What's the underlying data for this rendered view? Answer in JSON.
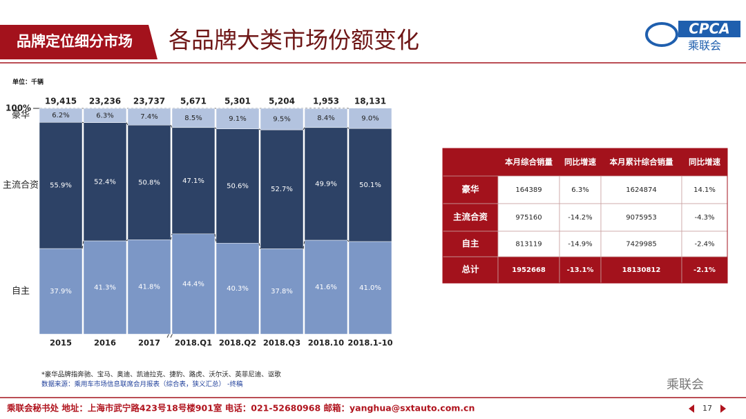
{
  "header": {
    "section": "品牌定位细分市场",
    "title": "各品牌大类市场份额变化",
    "logo": "CPCA",
    "logo_sub": "乘联会"
  },
  "chart_data": {
    "type": "stacked_bar",
    "unit": "单位：千辆",
    "categories": [
      "2015",
      "2016",
      "2017",
      "2018.Q1",
      "2018.Q2",
      "2018.Q3",
      "2018.10",
      "2018.1-10"
    ],
    "totals": {
      "values": [
        19415,
        23236,
        23737,
        5671,
        5301,
        5204,
        1953,
        18131
      ],
      "value_labels": [
        "19,415",
        "23,236",
        "23,737",
        "5,671",
        "5,301",
        "5,204",
        "1,953",
        "18,131"
      ]
    },
    "series": [
      {
        "name": "自主",
        "color": "#7c97c6",
        "values": [
          37.9,
          41.3,
          41.8,
          44.4,
          40.3,
          37.8,
          41.6,
          41.0
        ],
        "value_labels": [
          "37.9%",
          "41.3%",
          "41.8%",
          "44.4%",
          "40.3%",
          "37.8%",
          "41.6%",
          "41.0%"
        ]
      },
      {
        "name": "主流合资",
        "color": "#2d4266",
        "values": [
          55.9,
          52.4,
          50.8,
          47.1,
          50.6,
          52.7,
          49.9,
          50.1
        ],
        "value_labels": [
          "55.9%",
          "52.4%",
          "50.8%",
          "47.1%",
          "50.6%",
          "52.7%",
          "49.9%",
          "50.1%"
        ]
      },
      {
        "name": "豪华",
        "color": "#b3c3df",
        "values": [
          6.2,
          6.3,
          7.4,
          8.5,
          9.1,
          9.5,
          8.4,
          9.0
        ],
        "value_labels": [
          "6.2%",
          "6.3%",
          "7.4%",
          "8.5%",
          "9.1%",
          "9.5%",
          "8.4%",
          "9.0%"
        ]
      }
    ],
    "ylim": [
      0,
      100
    ],
    "yticks": [
      {
        "value": 100,
        "label": "100%"
      }
    ]
  },
  "notes": [
    "*豪华品牌指奔驰、宝马、奥迪、凯迪拉克、捷豹、路虎、沃尔沃、英菲尼迪、讴歌",
    "数据来源：乘用车市场信息联席会月报表（综合表，狭义汇总） -终稿"
  ],
  "table": {
    "headers": [
      "本月综合销量",
      "同比增速",
      "本月累计综合销量",
      "同比增速"
    ],
    "rows": [
      [
        "豪华",
        "164389",
        "6.3%",
        "1624874",
        "14.1%"
      ],
      [
        "主流合资",
        "975160",
        "-14.2%",
        "9075953",
        "-4.3%"
      ],
      [
        "自主",
        "813119",
        "-14.9%",
        "7429985",
        "-2.4%"
      ],
      [
        "总计",
        "1952668",
        "-13.1%",
        "18130812",
        "-2.1%"
      ]
    ]
  },
  "footer": {
    "text": "乘联会秘书处  地址：上海市武宁路423号18号楼901室  电话：021-52680968  邮箱：yanghua@sxtauto.com.cn",
    "page": "17",
    "watermark": "乘联会"
  }
}
